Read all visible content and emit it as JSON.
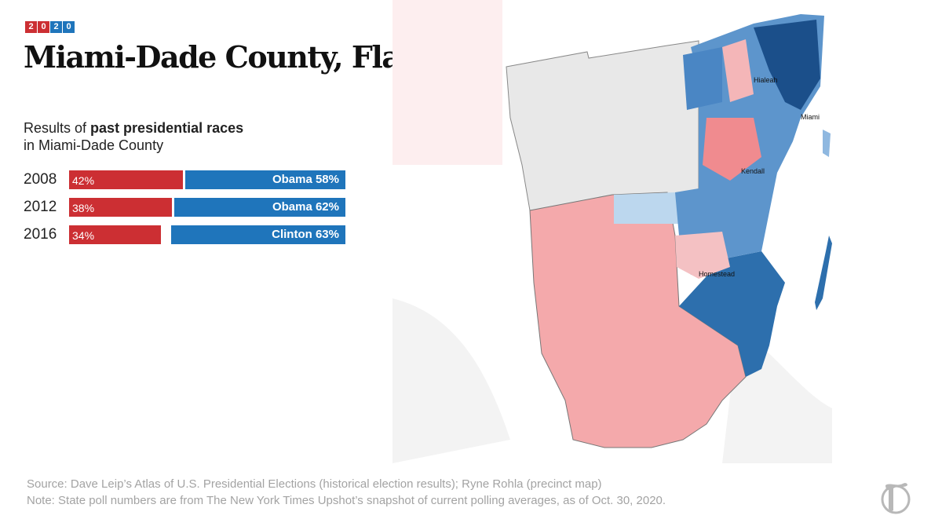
{
  "badge": {
    "digits": [
      "2",
      "0",
      "2",
      "0"
    ]
  },
  "title": "Miami-Dade County, Fla.",
  "subtitle": {
    "prefix": "Results of ",
    "bold": "past presidential races",
    "line2": "in Miami-Dade County"
  },
  "colors": {
    "rep": "#cc2f33",
    "dem": "#1f75bb",
    "rep_light": "#f4a9ab",
    "dem_light": "#bcd7ee"
  },
  "races": [
    {
      "year": "2008",
      "rep_label": "42%",
      "dem_label": "Obama 58%",
      "rep_pct": 42,
      "dem_pct": 58
    },
    {
      "year": "2012",
      "rep_label": "38%",
      "dem_label": "Obama 62%",
      "rep_pct": 38,
      "dem_pct": 62
    },
    {
      "year": "2016",
      "rep_label": "34%",
      "dem_label": "Clinton 63%",
      "rep_pct": 34,
      "dem_pct": 63
    }
  ],
  "map": {
    "cities": [
      "Hialeah",
      "Miami",
      "Kendall",
      "Homestead"
    ]
  },
  "footer": {
    "source": "Source: Dave Leip’s Atlas of U.S. Presidential Elections (historical election results); Ryne Rohla (precinct map)",
    "note": "Note: State poll numbers are from The New York Times Upshot’s snapshot of current polling averages, as of Oct. 30, 2020."
  },
  "logo_icon": "nyt-t-logo-icon"
}
